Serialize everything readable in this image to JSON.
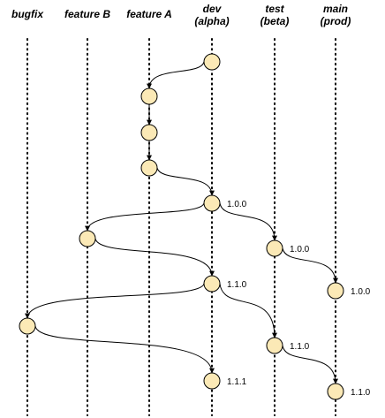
{
  "branches": [
    {
      "id": "bugfix",
      "lines": [
        "bugfix"
      ]
    },
    {
      "id": "featureB",
      "lines": [
        "feature B"
      ]
    },
    {
      "id": "featureA",
      "lines": [
        "feature A"
      ]
    },
    {
      "id": "dev",
      "lines": [
        "dev",
        "(alpha)"
      ]
    },
    {
      "id": "test",
      "lines": [
        "test",
        "(beta)"
      ]
    },
    {
      "id": "main",
      "lines": [
        "main",
        "(prod)"
      ]
    }
  ],
  "commits": [
    {
      "id": "c1",
      "branch": "dev",
      "label": ""
    },
    {
      "id": "c2",
      "branch": "featureA",
      "label": ""
    },
    {
      "id": "c3",
      "branch": "featureA",
      "label": ""
    },
    {
      "id": "c4",
      "branch": "featureA",
      "label": ""
    },
    {
      "id": "c5",
      "branch": "dev",
      "label": "1.0.0"
    },
    {
      "id": "c6",
      "branch": "featureB",
      "label": ""
    },
    {
      "id": "c7",
      "branch": "test",
      "label": "1.0.0"
    },
    {
      "id": "c8",
      "branch": "main",
      "label": "1.0.0"
    },
    {
      "id": "c9",
      "branch": "dev",
      "label": "1.1.0"
    },
    {
      "id": "c10",
      "branch": "bugfix",
      "label": ""
    },
    {
      "id": "c11",
      "branch": "test",
      "label": "1.1.0"
    },
    {
      "id": "c12",
      "branch": "dev",
      "label": "1.1.1"
    },
    {
      "id": "c13",
      "branch": "main",
      "label": "1.1.0"
    }
  ],
  "edges": [
    {
      "from": "c1",
      "to": "c2"
    },
    {
      "from": "c2",
      "to": "c3"
    },
    {
      "from": "c3",
      "to": "c4"
    },
    {
      "from": "c4",
      "to": "c5"
    },
    {
      "from": "c5",
      "to": "c6"
    },
    {
      "from": "c5",
      "to": "c7"
    },
    {
      "from": "c7",
      "to": "c8"
    },
    {
      "from": "c6",
      "to": "c9"
    },
    {
      "from": "c9",
      "to": "c10"
    },
    {
      "from": "c9",
      "to": "c11"
    },
    {
      "from": "c11",
      "to": "c13"
    },
    {
      "from": "c10",
      "to": "c12"
    }
  ],
  "colors": {
    "commit_fill": "#fbe9b6",
    "stroke": "#000000"
  }
}
